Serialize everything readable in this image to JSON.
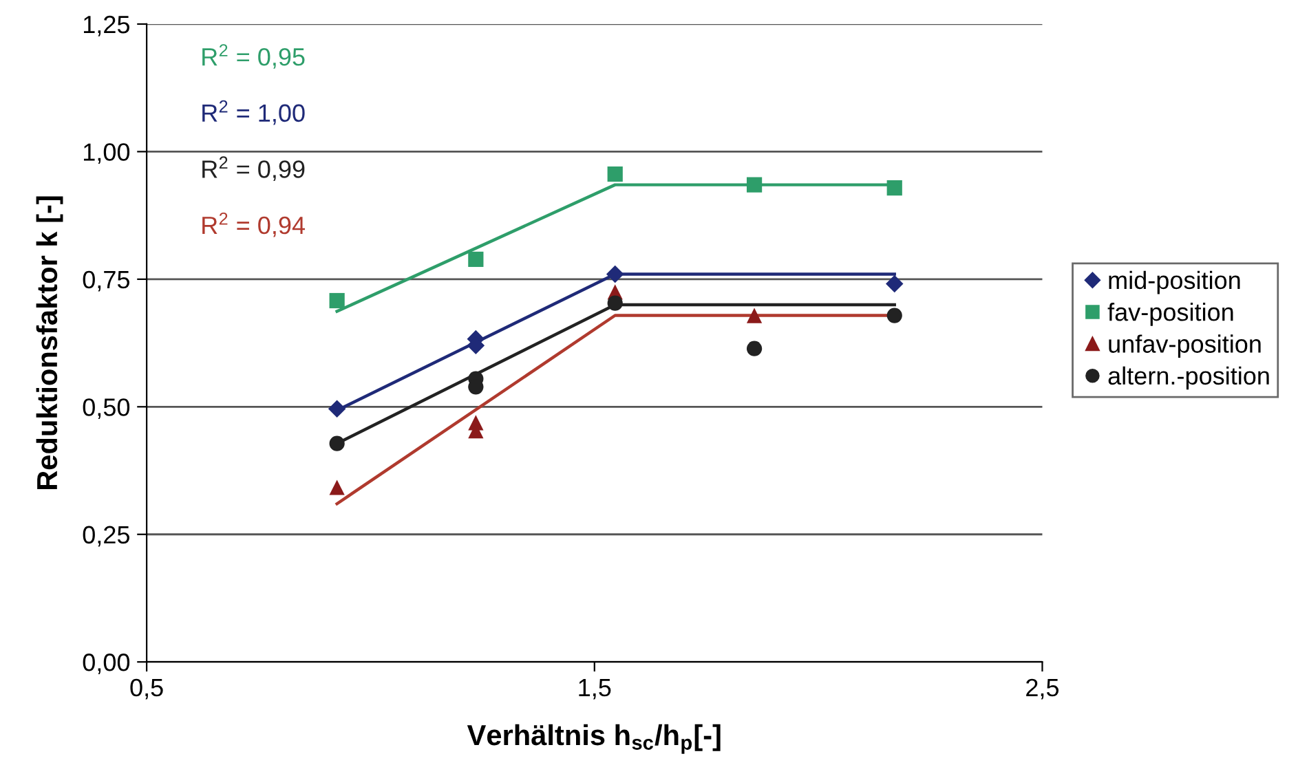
{
  "chart_data": {
    "type": "scatter",
    "xlabel": "Verhältnis h$_{sc}$/h$_{p}$[-]",
    "ylabel": "Reduktionsfaktor k [-]",
    "xlim": [
      0.5,
      2.5
    ],
    "xticks": [
      {
        "value": 0.5,
        "label": "0,5"
      },
      {
        "value": 1.5,
        "label": "1,5"
      },
      {
        "value": 2.5,
        "label": "2,5"
      }
    ],
    "ylim": [
      0,
      1.25
    ],
    "yticks": [
      {
        "value": 0,
        "label": "0,00"
      },
      {
        "value": 0.25,
        "label": "0,25"
      },
      {
        "value": 0.5,
        "label": "0,50"
      },
      {
        "value": 0.75,
        "label": "0,75"
      },
      {
        "value": 1.0,
        "label": "1,00"
      },
      {
        "value": 1.25,
        "label": "1,25"
      }
    ],
    "grid": "y",
    "legend": "right",
    "annotations": [
      "R$^{2}$ = 0,95",
      "R$^{2}$ = 1,00",
      "R$^{2}$ = 0,99",
      "R$^{2}$ = 0,94"
    ],
    "series": [
      {
        "type": "line",
        "color": "#2e9e6a",
        "marker": "none",
        "x": [
          0.925,
          1.546,
          2.17
        ],
        "values": [
          0.687,
          0.935,
          0.935
        ]
      },
      {
        "type": "line",
        "color": "#1f2a78",
        "marker": "none",
        "x": [
          0.925,
          1.546,
          2.17
        ],
        "values": [
          0.493,
          0.76,
          0.76
        ]
      },
      {
        "type": "line",
        "color": "#222222",
        "marker": "none",
        "x": [
          0.925,
          1.546,
          2.17
        ],
        "values": [
          0.428,
          0.7,
          0.7
        ]
      },
      {
        "type": "line",
        "color": "#b03a2e",
        "marker": "none",
        "x": [
          0.925,
          1.546,
          2.17
        ],
        "values": [
          0.31,
          0.679,
          0.679
        ]
      },
      {
        "name": "mid-position",
        "color": "#1f2a78",
        "marker": "diamond",
        "x": [
          0.925,
          1.235,
          1.235,
          1.546,
          2.17
        ],
        "values": [
          0.496,
          0.633,
          0.62,
          0.76,
          0.741
        ]
      },
      {
        "name": "fav-position",
        "color": "#2e9e6a",
        "marker": "square",
        "x": [
          0.925,
          1.235,
          1.546,
          1.857,
          2.17
        ],
        "values": [
          0.708,
          0.789,
          0.956,
          0.935,
          0.929
        ]
      },
      {
        "name": "unfav-position",
        "color": "#8b1a1a",
        "marker": "triangle",
        "x": [
          0.925,
          1.235,
          1.235,
          1.546,
          1.857
        ],
        "values": [
          0.342,
          0.469,
          0.453,
          0.725,
          0.679
        ]
      },
      {
        "name": "altern.-position",
        "color": "#222222",
        "marker": "circle",
        "x": [
          0.925,
          1.235,
          1.235,
          1.546,
          1.857,
          2.17
        ],
        "values": [
          0.428,
          0.555,
          0.539,
          0.703,
          0.614,
          0.679
        ]
      }
    ]
  }
}
